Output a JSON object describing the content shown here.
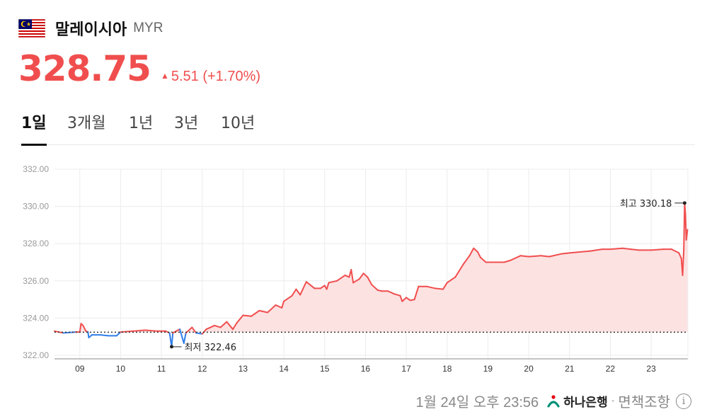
{
  "header": {
    "country": "말레이시아",
    "currency_code": "MYR",
    "flag_icon": "malaysia-flag-icon"
  },
  "quote": {
    "price": "328.75",
    "change": "5.51",
    "change_pct": "(+1.70%)",
    "direction": "up",
    "up_color": "#f04e4e",
    "down_color": "#2f7ee8"
  },
  "tabs": [
    {
      "label": "1일",
      "active": true
    },
    {
      "label": "3개월",
      "active": false
    },
    {
      "label": "1년",
      "active": false
    },
    {
      "label": "3년",
      "active": false
    },
    {
      "label": "10년",
      "active": false
    }
  ],
  "chart_data": {
    "type": "line",
    "y_ticks": [
      "332.00",
      "330.00",
      "328.00",
      "326.00",
      "324.00",
      "322.00"
    ],
    "ylim": [
      321.8,
      332.0
    ],
    "x_ticks": [
      "09",
      "10",
      "11",
      "12",
      "13",
      "14",
      "15",
      "16",
      "17",
      "18",
      "19",
      "20",
      "21",
      "22",
      "23"
    ],
    "xlim": [
      8.38,
      23.9
    ],
    "baseline": 323.24,
    "high": {
      "label": "최고 330.18",
      "x": 23.82,
      "y": 330.18
    },
    "low": {
      "label": "최저 322.46",
      "x": 11.25,
      "y": 322.46
    },
    "grid": true,
    "series": [
      {
        "values": [
          [
            8.38,
            323.3
          ],
          [
            8.6,
            323.2
          ],
          [
            8.9,
            323.25
          ],
          [
            9.0,
            323.25
          ],
          [
            9.03,
            323.7
          ],
          [
            9.08,
            323.6
          ],
          [
            9.15,
            323.3
          ],
          [
            9.2,
            323.25
          ],
          [
            9.22,
            322.95
          ],
          [
            9.3,
            323.1
          ],
          [
            9.5,
            323.1
          ],
          [
            9.7,
            323.05
          ],
          [
            9.9,
            323.05
          ],
          [
            10.0,
            323.25
          ],
          [
            10.3,
            323.3
          ],
          [
            10.6,
            323.35
          ],
          [
            10.9,
            323.3
          ],
          [
            11.1,
            323.3
          ],
          [
            11.2,
            323.2
          ],
          [
            11.25,
            322.46
          ],
          [
            11.28,
            323.2
          ],
          [
            11.45,
            323.4
          ],
          [
            11.55,
            322.65
          ],
          [
            11.6,
            323.2
          ],
          [
            11.75,
            323.5
          ],
          [
            11.85,
            323.2
          ],
          [
            12.0,
            323.15
          ],
          [
            12.1,
            323.4
          ],
          [
            12.3,
            323.6
          ],
          [
            12.45,
            323.5
          ],
          [
            12.6,
            323.8
          ],
          [
            12.75,
            323.4
          ],
          [
            12.85,
            323.75
          ],
          [
            13.0,
            324.15
          ],
          [
            13.2,
            324.1
          ],
          [
            13.4,
            324.4
          ],
          [
            13.6,
            324.3
          ],
          [
            13.8,
            324.7
          ],
          [
            13.95,
            324.55
          ],
          [
            14.0,
            324.9
          ],
          [
            14.2,
            325.2
          ],
          [
            14.3,
            325.55
          ],
          [
            14.4,
            325.25
          ],
          [
            14.55,
            325.95
          ],
          [
            14.75,
            325.6
          ],
          [
            14.9,
            325.6
          ],
          [
            15.0,
            325.75
          ],
          [
            15.05,
            325.55
          ],
          [
            15.1,
            325.9
          ],
          [
            15.3,
            326.0
          ],
          [
            15.5,
            326.3
          ],
          [
            15.6,
            326.2
          ],
          [
            15.65,
            326.6
          ],
          [
            15.7,
            325.9
          ],
          [
            15.85,
            326.1
          ],
          [
            15.95,
            326.4
          ],
          [
            16.05,
            326.2
          ],
          [
            16.15,
            325.8
          ],
          [
            16.3,
            325.5
          ],
          [
            16.4,
            325.45
          ],
          [
            16.55,
            325.45
          ],
          [
            16.7,
            325.3
          ],
          [
            16.85,
            325.2
          ],
          [
            16.9,
            324.9
          ],
          [
            17.0,
            325.1
          ],
          [
            17.1,
            324.95
          ],
          [
            17.2,
            325.0
          ],
          [
            17.3,
            325.7
          ],
          [
            17.5,
            325.7
          ],
          [
            17.7,
            325.6
          ],
          [
            17.9,
            325.55
          ],
          [
            18.0,
            325.9
          ],
          [
            18.2,
            326.2
          ],
          [
            18.4,
            326.9
          ],
          [
            18.55,
            327.35
          ],
          [
            18.65,
            327.75
          ],
          [
            18.75,
            327.55
          ],
          [
            18.82,
            327.25
          ],
          [
            18.95,
            327.0
          ],
          [
            19.2,
            327.0
          ],
          [
            19.4,
            327.0
          ],
          [
            19.55,
            327.1
          ],
          [
            19.8,
            327.35
          ],
          [
            20.0,
            327.3
          ],
          [
            20.3,
            327.35
          ],
          [
            20.5,
            327.3
          ],
          [
            20.8,
            327.45
          ],
          [
            21.0,
            327.5
          ],
          [
            21.25,
            327.55
          ],
          [
            21.5,
            327.6
          ],
          [
            21.8,
            327.7
          ],
          [
            22.0,
            327.7
          ],
          [
            22.3,
            327.75
          ],
          [
            22.5,
            327.7
          ],
          [
            22.7,
            327.65
          ],
          [
            23.0,
            327.65
          ],
          [
            23.3,
            327.7
          ],
          [
            23.5,
            327.7
          ],
          [
            23.68,
            327.5
          ],
          [
            23.74,
            327.2
          ],
          [
            23.77,
            326.3
          ],
          [
            23.8,
            327.7
          ],
          [
            23.82,
            330.18
          ],
          [
            23.84,
            329.6
          ],
          [
            23.86,
            328.2
          ],
          [
            23.89,
            328.75
          ]
        ]
      }
    ]
  },
  "footer": {
    "timestamp": "1월 24일 오후 23:56",
    "bank": "하나은행",
    "separator": "·",
    "disclaimer": "면책조항",
    "bank_icon": "hana-bank-logo-icon",
    "info_icon": "info-icon"
  }
}
